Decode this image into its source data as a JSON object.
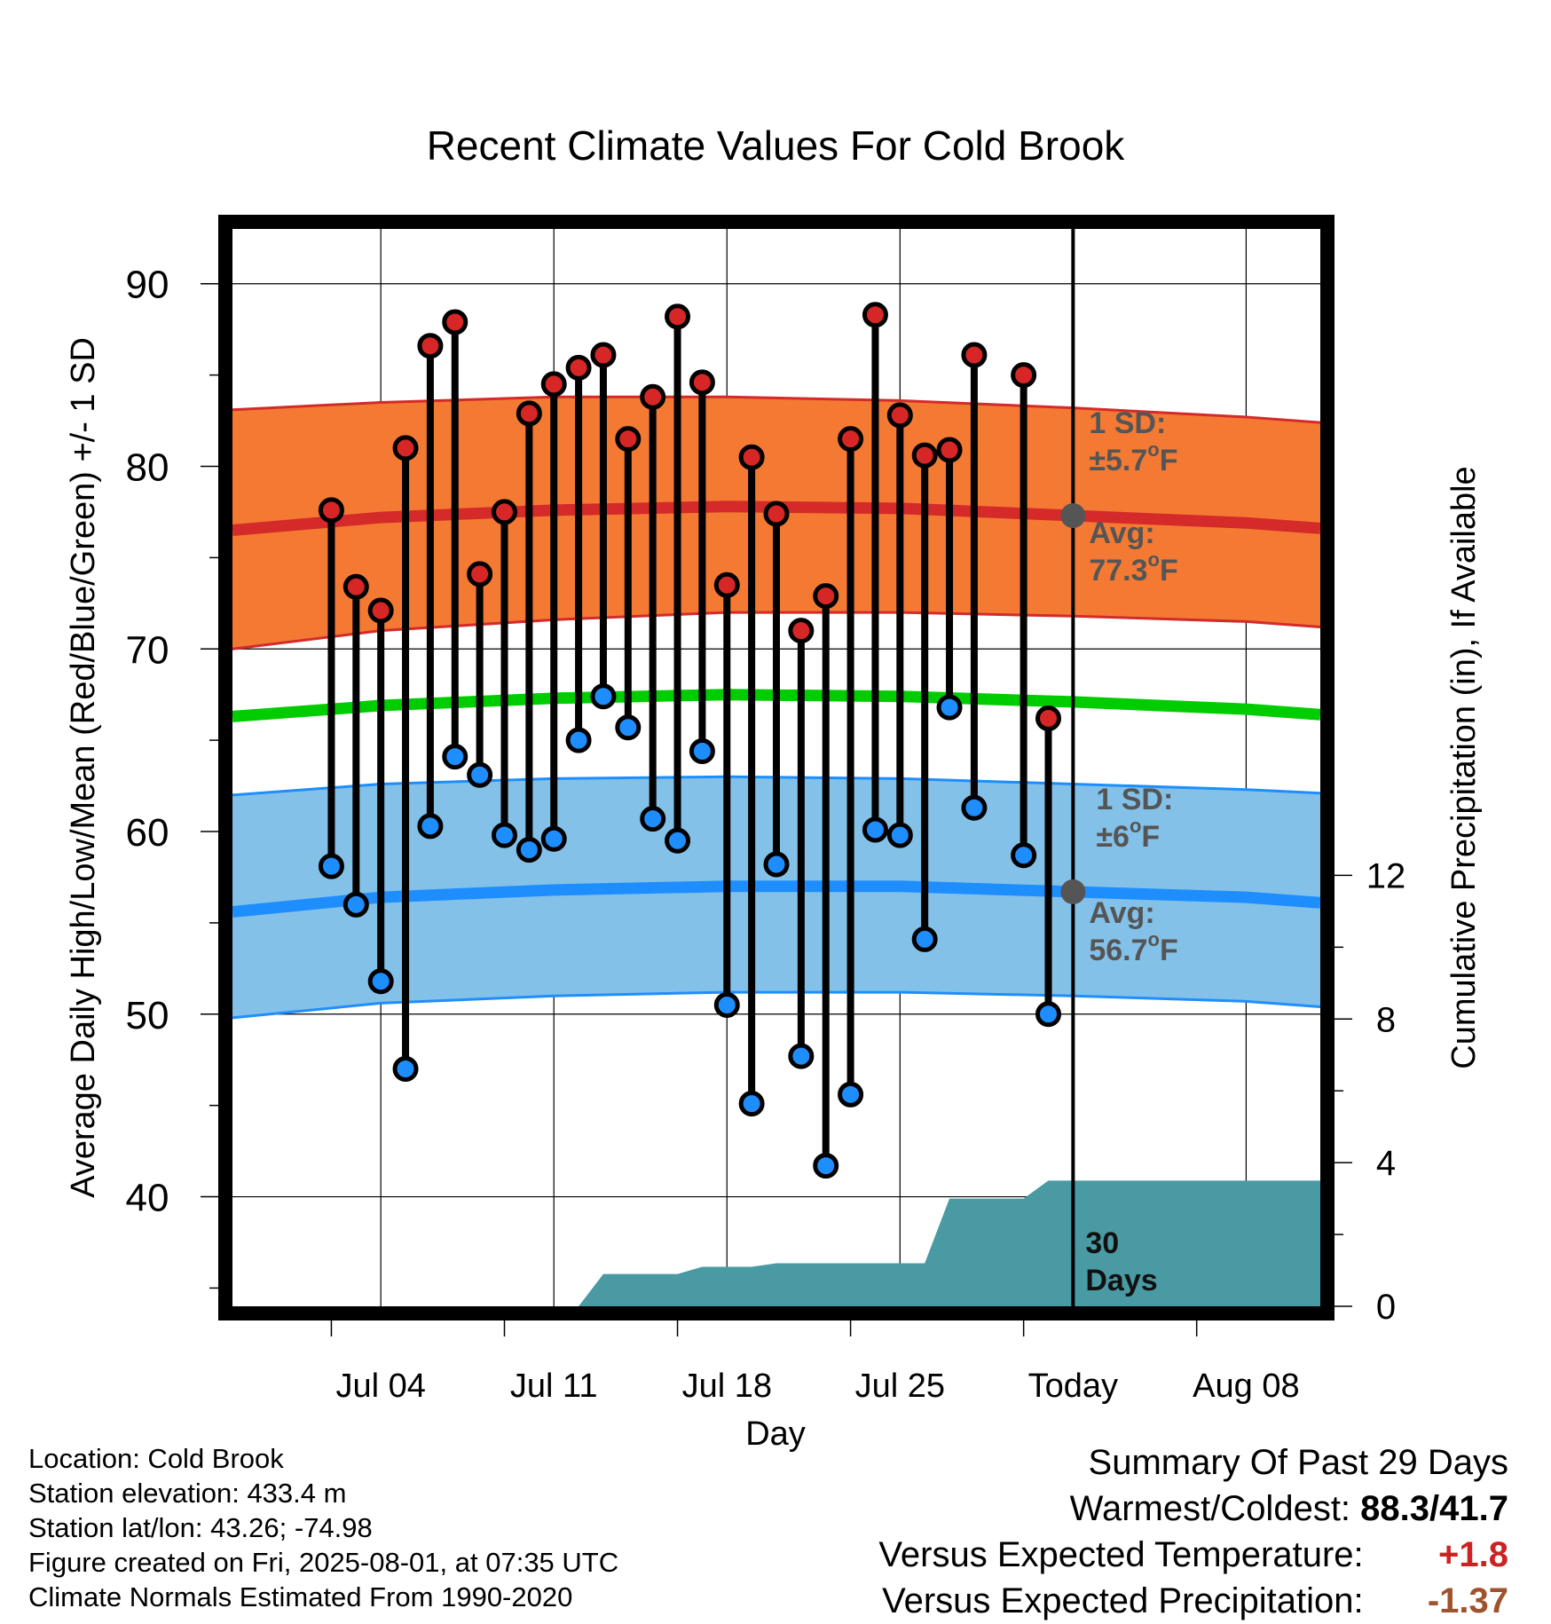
{
  "chart_data": {
    "type": "line",
    "title": "Recent Climate Values For Cold Brook",
    "xlabel": "Day",
    "ylabel": "Average Daily High/Low/Mean (Red/Blue/Green) +/- 1 SD",
    "y2label": "Cumulative Precipitation (in), If Available",
    "ylim": [
      34,
      93
    ],
    "y2lim": [
      0,
      30
    ],
    "yticks": [
      "40",
      "50",
      "60",
      "70",
      "80",
      "90"
    ],
    "y2ticks": [
      "0",
      "4",
      "8",
      "12"
    ],
    "x_range": [
      "2025-06-28",
      "2025-08-11"
    ],
    "xticks": [
      {
        "date": "2025-07-04",
        "label": "Jul 04"
      },
      {
        "date": "2025-07-11",
        "label": "Jul 11"
      },
      {
        "date": "2025-07-18",
        "label": "Jul 18"
      },
      {
        "date": "2025-07-25",
        "label": "Jul 25"
      },
      {
        "date": "2025-08-01",
        "label": "Today"
      },
      {
        "date": "2025-08-08",
        "label": "Aug 08"
      }
    ],
    "grid": true,
    "today": "2025-08-01",
    "daily": [
      {
        "date": "2025-07-02",
        "high": 77.6,
        "low": 58.1
      },
      {
        "date": "2025-07-03",
        "high": 73.4,
        "low": 56.0
      },
      {
        "date": "2025-07-04",
        "high": 72.1,
        "low": 51.8
      },
      {
        "date": "2025-07-05",
        "high": 81.0,
        "low": 47.0
      },
      {
        "date": "2025-07-06",
        "high": 86.6,
        "low": 60.3
      },
      {
        "date": "2025-07-07",
        "high": 87.9,
        "low": 64.1
      },
      {
        "date": "2025-07-08",
        "high": 74.1,
        "low": 63.1
      },
      {
        "date": "2025-07-09",
        "high": 77.5,
        "low": 59.8
      },
      {
        "date": "2025-07-10",
        "high": 82.9,
        "low": 59.0
      },
      {
        "date": "2025-07-11",
        "high": 84.5,
        "low": 59.6
      },
      {
        "date": "2025-07-12",
        "high": 85.4,
        "low": 65.0
      },
      {
        "date": "2025-07-13",
        "high": 86.1,
        "low": 67.4
      },
      {
        "date": "2025-07-14",
        "high": 81.5,
        "low": 65.7
      },
      {
        "date": "2025-07-15",
        "high": 83.8,
        "low": 60.7
      },
      {
        "date": "2025-07-16",
        "high": 88.2,
        "low": 59.5
      },
      {
        "date": "2025-07-17",
        "high": 84.6,
        "low": 64.4
      },
      {
        "date": "2025-07-18",
        "high": 73.5,
        "low": 50.5
      },
      {
        "date": "2025-07-19",
        "high": 80.5,
        "low": 45.1
      },
      {
        "date": "2025-07-20",
        "high": 77.4,
        "low": 58.2
      },
      {
        "date": "2025-07-21",
        "high": 71.0,
        "low": 47.7
      },
      {
        "date": "2025-07-22",
        "high": 72.9,
        "low": 41.7
      },
      {
        "date": "2025-07-23",
        "high": 81.5,
        "low": 45.6
      },
      {
        "date": "2025-07-24",
        "high": 88.3,
        "low": 60.1
      },
      {
        "date": "2025-07-25",
        "high": 82.8,
        "low": 59.8
      },
      {
        "date": "2025-07-26",
        "high": 80.6,
        "low": 54.1
      },
      {
        "date": "2025-07-27",
        "high": 80.9,
        "low": 66.8
      },
      {
        "date": "2025-07-28",
        "high": 86.1,
        "low": 61.3
      },
      {
        "date": "2025-07-30",
        "high": 85.0,
        "low": 58.7
      },
      {
        "date": "2025-07-31",
        "high": 66.2,
        "low": 50.0
      }
    ],
    "normals": {
      "dates": [
        "2025-06-28",
        "2025-07-04",
        "2025-07-11",
        "2025-07-18",
        "2025-07-25",
        "2025-08-01",
        "2025-08-08",
        "2025-08-11"
      ],
      "high_avg": [
        76.5,
        77.2,
        77.6,
        77.8,
        77.7,
        77.3,
        76.9,
        76.6
      ],
      "high_upper": [
        83.1,
        83.5,
        83.8,
        83.8,
        83.6,
        83.2,
        82.7,
        82.4
      ],
      "high_lower": [
        70.0,
        71.0,
        71.6,
        72.0,
        72.0,
        71.8,
        71.5,
        71.2
      ],
      "mean_avg": [
        66.3,
        66.9,
        67.3,
        67.5,
        67.4,
        67.1,
        66.7,
        66.4
      ],
      "low_avg": [
        55.6,
        56.4,
        56.8,
        57.0,
        57.0,
        56.7,
        56.4,
        56.1
      ],
      "low_upper": [
        62.0,
        62.6,
        62.9,
        63.0,
        62.9,
        62.6,
        62.3,
        62.1
      ],
      "low_lower": [
        49.8,
        50.6,
        51.0,
        51.2,
        51.2,
        51.0,
        50.7,
        50.4
      ]
    },
    "precip": {
      "dates": [
        "2025-07-12",
        "2025-07-13",
        "2025-07-16",
        "2025-07-17",
        "2025-07-19",
        "2025-07-20",
        "2025-07-26",
        "2025-07-27",
        "2025-07-30",
        "2025-07-31",
        "2025-08-11"
      ],
      "values": [
        0.0,
        0.9,
        0.9,
        1.1,
        1.1,
        1.2,
        1.2,
        3.0,
        3.0,
        3.5,
        3.5
      ]
    },
    "annotations": {
      "high_sd": {
        "line1": "1 SD:",
        "line2": "±5.7",
        "unit": "F"
      },
      "high_avg": {
        "line1": "Avg:",
        "line2": "77.3",
        "unit": "F",
        "value": 77.3
      },
      "low_sd": {
        "line1": "1 SD:",
        "line2": "±6",
        "unit": "F"
      },
      "low_avg": {
        "line1": "Avg:",
        "line2": "56.7",
        "unit": "F",
        "value": 56.7
      },
      "window": {
        "line1": "30",
        "line2": "Days"
      }
    },
    "colors": {
      "high_band": "#f47a33",
      "high_line": "#d42a2a",
      "mean_line": "#00cc00",
      "low_band": "#84c1e8",
      "low_line": "#1e8eff",
      "precip": "#4a9aa3",
      "high_marker": "#d62626",
      "low_marker": "#1e8eff",
      "annotation": "#555555"
    }
  },
  "info": {
    "location": "Location: Cold Brook",
    "elevation": "Station elevation: 433.4 m",
    "latlon": "Station lat/lon: 43.26; -74.98",
    "created": "Figure created on Fri, 2025-08-01, at 07:35 UTC",
    "normals": "Climate Normals Estimated From 1990-2020"
  },
  "summary": {
    "title": "Summary Of Past 29 Days",
    "warmest_label": "Warmest/Coldest:",
    "warmest_value": "88.3/41.7",
    "temp_label": "Versus Expected Temperature:",
    "temp_value": "+1.8",
    "temp_color": "#cc2222",
    "precip_label": "Versus Expected Precipitation:",
    "precip_value": "-1.37",
    "precip_color": "#a0522d"
  }
}
